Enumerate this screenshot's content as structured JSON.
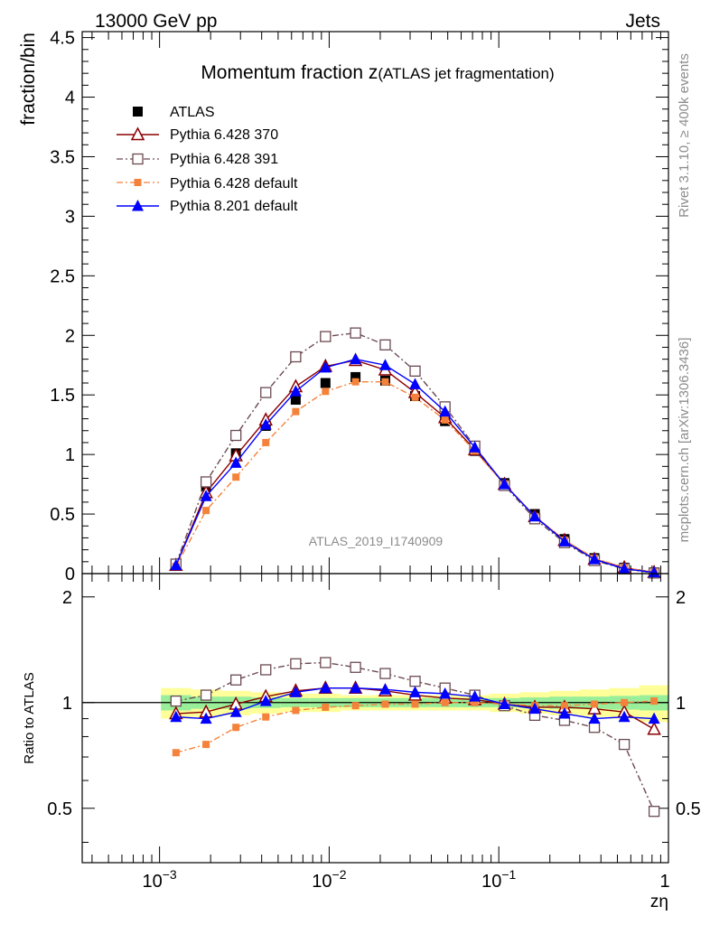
{
  "header": {
    "left": "13000 GeV pp",
    "right": "Jets"
  },
  "side_labels": {
    "rivet": "Rivet 3.1.10, ≥ 400k events",
    "mcplots": "mcplots.cern.ch [arXiv:1306.3436]"
  },
  "chart_data": [
    {
      "type": "scatter",
      "title": "Momentum fraction z(ATLAS jet fragmentation)",
      "title_main": "Momentum fraction z",
      "title_sub": "(ATLAS jet fragmentation)",
      "watermark": "ATLAS_2019_I1740909",
      "ylabel": "fraction/bin",
      "xlabel": "zη",
      "xscale": "log",
      "xlim": [
        0.00035,
        1.0
      ],
      "ylim": [
        0,
        4.55
      ],
      "yticks": [
        0,
        0.5,
        1,
        1.5,
        2,
        2.5,
        3,
        3.5,
        4,
        4.5
      ],
      "ytick_labels": [
        "0",
        "0.5",
        "1",
        "1.5",
        "2",
        "2.5",
        "3",
        "3.5",
        "4",
        "4.5"
      ],
      "legend_position": "top-left",
      "x": [
        0.00125,
        0.00188,
        0.00282,
        0.00423,
        0.00635,
        0.00951,
        0.0143,
        0.0214,
        0.0321,
        0.0482,
        0.0722,
        0.108,
        0.163,
        0.244,
        0.366,
        0.549,
        0.823
      ],
      "series": [
        {
          "name": "ATLAS",
          "color": "#000000",
          "marker": "square-filled",
          "line": "none",
          "values": [
            0.08,
            0.73,
            1.01,
            1.24,
            1.46,
            1.6,
            1.65,
            1.62,
            1.49,
            1.28,
            1.03,
            0.76,
            0.5,
            0.29,
            0.13,
            0.05,
            0.01
          ]
        },
        {
          "name": "Pythia 6.428 370",
          "color": "#8b0000",
          "marker": "triangle-open",
          "line": "solid",
          "values": [
            0.07,
            0.68,
            0.99,
            1.29,
            1.57,
            1.74,
            1.79,
            1.71,
            1.52,
            1.31,
            1.04,
            0.75,
            0.48,
            0.28,
            0.12,
            0.05,
            0.01
          ]
        },
        {
          "name": "Pythia 6.428 391",
          "color": "#6b4a52",
          "marker": "square-open",
          "line": "dashdot",
          "values": [
            0.08,
            0.77,
            1.16,
            1.52,
            1.82,
            1.99,
            2.02,
            1.92,
            1.7,
            1.4,
            1.07,
            0.74,
            0.46,
            0.26,
            0.11,
            0.04,
            0.005
          ]
        },
        {
          "name": "Pythia 6.428 default",
          "color": "#f5823a",
          "marker": "square-filled-small",
          "line": "dashdot",
          "values": [
            0.06,
            0.53,
            0.81,
            1.1,
            1.36,
            1.53,
            1.61,
            1.61,
            1.48,
            1.29,
            1.03,
            0.75,
            0.48,
            0.28,
            0.13,
            0.05,
            0.01
          ]
        },
        {
          "name": "Pythia 8.201 default",
          "color": "#0000ff",
          "marker": "triangle-filled",
          "line": "solid",
          "values": [
            0.07,
            0.65,
            0.93,
            1.25,
            1.53,
            1.73,
            1.8,
            1.75,
            1.59,
            1.36,
            1.06,
            0.75,
            0.48,
            0.27,
            0.12,
            0.04,
            0.01
          ]
        }
      ]
    },
    {
      "type": "line",
      "ylabel": "Ratio to ATLAS",
      "xlabel": "zη",
      "xscale": "log",
      "xlim": [
        0.00035,
        1.0
      ],
      "ylim": [
        0.35,
        2.33
      ],
      "yticks": [
        0.5,
        1,
        2
      ],
      "ytick_labels": [
        "0.5",
        "1",
        "2"
      ],
      "xticks": [
        0.001,
        0.01,
        0.1,
        1
      ],
      "xtick_labels": [
        "10−3",
        "10−2",
        "10−1",
        "1"
      ],
      "x": [
        0.00125,
        0.00188,
        0.00282,
        0.00423,
        0.00635,
        0.00951,
        0.0143,
        0.0214,
        0.0321,
        0.0482,
        0.0722,
        0.108,
        0.163,
        0.244,
        0.366,
        0.549,
        0.823
      ],
      "band_inner": [
        0.05,
        0.04,
        0.04,
        0.035,
        0.03,
        0.03,
        0.03,
        0.03,
        0.03,
        0.03,
        0.03,
        0.03,
        0.035,
        0.04,
        0.04,
        0.045,
        0.05
      ],
      "band_outer": [
        0.1,
        0.09,
        0.08,
        0.07,
        0.06,
        0.06,
        0.05,
        0.05,
        0.05,
        0.05,
        0.05,
        0.06,
        0.07,
        0.08,
        0.09,
        0.1,
        0.12
      ],
      "series": [
        {
          "name": "Pythia 6.428 370",
          "color": "#8b0000",
          "marker": "triangle-open",
          "line": "solid",
          "values": [
            0.93,
            0.94,
            0.99,
            1.04,
            1.08,
            1.1,
            1.1,
            1.08,
            1.05,
            1.03,
            1.02,
            0.99,
            0.97,
            0.97,
            0.96,
            0.94,
            0.84
          ]
        },
        {
          "name": "Pythia 6.428 391",
          "color": "#6b4a52",
          "marker": "square-open",
          "line": "dashdot",
          "values": [
            1.01,
            1.05,
            1.16,
            1.24,
            1.29,
            1.3,
            1.26,
            1.21,
            1.15,
            1.1,
            1.05,
            0.98,
            0.92,
            0.89,
            0.85,
            0.76,
            0.49
          ]
        },
        {
          "name": "Pythia 6.428 default",
          "color": "#f5823a",
          "marker": "square-filled-small",
          "line": "dashdot",
          "values": [
            0.72,
            0.76,
            0.85,
            0.91,
            0.95,
            0.97,
            0.98,
            0.99,
            0.99,
            1.0,
            1.0,
            0.99,
            0.98,
            0.98,
            0.99,
            1.0,
            1.01
          ]
        },
        {
          "name": "Pythia 8.201 default",
          "color": "#0000ff",
          "marker": "triangle-filled",
          "line": "solid",
          "values": [
            0.91,
            0.9,
            0.94,
            1.01,
            1.07,
            1.1,
            1.1,
            1.09,
            1.07,
            1.06,
            1.04,
            0.99,
            0.96,
            0.93,
            0.9,
            0.91,
            0.9
          ]
        }
      ]
    }
  ]
}
